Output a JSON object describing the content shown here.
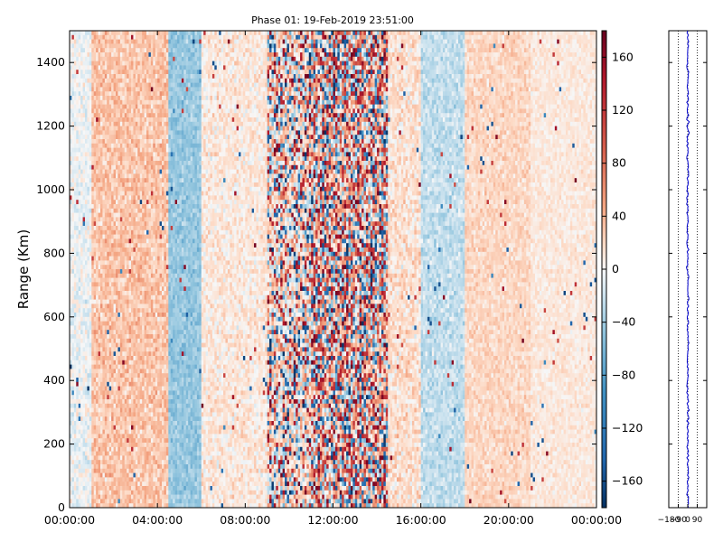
{
  "chart_data": [
    {
      "type": "heatmap",
      "title": "Phase 01: 19-Feb-2019 23:51:00",
      "xlabel": "",
      "ylabel": "Range (Km)",
      "xlim": [
        "00:00:00",
        "24:00:00"
      ],
      "ylim": [
        0,
        1500
      ],
      "x_ticks": [
        "00:00:00",
        "04:00:00",
        "08:00:00",
        "12:00:00",
        "16:00:00",
        "20:00:00",
        "00:00:00"
      ],
      "y_ticks": [
        0,
        200,
        400,
        600,
        800,
        1000,
        1200,
        1400
      ],
      "colormap": "RdBu_r",
      "colorbar": {
        "ticks": [
          -160,
          -120,
          -80,
          -40,
          0,
          40,
          80,
          120,
          160
        ],
        "tick_labels": [
          "−160",
          "−120",
          "−80",
          "−40",
          "0",
          "40",
          "80",
          "120",
          "160"
        ],
        "range": [
          -180,
          180
        ]
      },
      "time_bands": [
        {
          "start": "00:00:00",
          "end": "01:00:00",
          "mean": -5,
          "spread": 25
        },
        {
          "start": "01:00:00",
          "end": "04:30:00",
          "mean": 30,
          "spread": 30
        },
        {
          "start": "04:30:00",
          "end": "06:00:00",
          "mean": -45,
          "spread": 25
        },
        {
          "start": "06:00:00",
          "end": "09:00:00",
          "mean": 10,
          "spread": 25
        },
        {
          "start": "09:00:00",
          "end": "11:00:00",
          "mean": 10,
          "spread": 90
        },
        {
          "start": "11:00:00",
          "end": "14:30:00",
          "mean": 25,
          "spread": 150
        },
        {
          "start": "14:30:00",
          "end": "16:00:00",
          "mean": 15,
          "spread": 30
        },
        {
          "start": "16:00:00",
          "end": "18:00:00",
          "mean": -25,
          "spread": 25
        },
        {
          "start": "18:00:00",
          "end": "21:00:00",
          "mean": 20,
          "spread": 20
        },
        {
          "start": "21:00:00",
          "end": "24:00:00",
          "mean": 10,
          "spread": 15
        }
      ]
    },
    {
      "type": "line",
      "title": "",
      "x_ticks": [
        -180,
        -90,
        0,
        90
      ],
      "x_tick_labels": [
        "−180",
        "−90",
        "0",
        "90"
      ],
      "xlim": [
        -180,
        180
      ],
      "ylim": [
        0,
        1500
      ],
      "series_color": "#0000cc",
      "profile_mean": 0,
      "profile_spread": 8
    }
  ]
}
